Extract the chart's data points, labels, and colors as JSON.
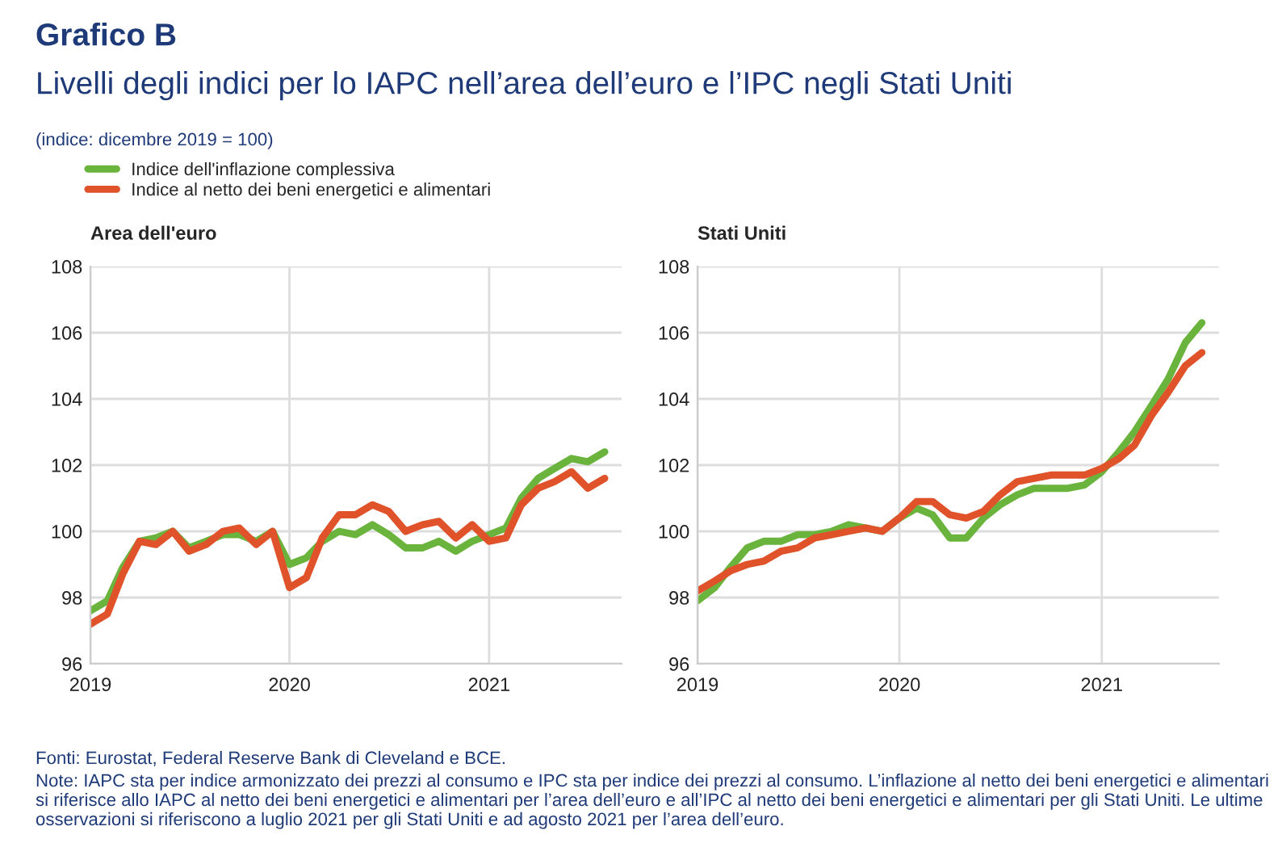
{
  "chart_data": [
    {
      "type": "line",
      "title": "Area dell'euro",
      "annotations": [
        "Grafico B",
        "Livelli degli indici per lo IAPC nell’area dell’euro e l’IPC negli Stati Uniti",
        "(indice: dicembre 2019 = 100)",
        "Fonti: Eurostat, Federal Reserve Bank di Cleveland e BCE.",
        "Note: IAPC sta per indice armonizzato dei prezzi al consumo e IPC sta per indice dei prezzi al consumo. L’inflazione al netto dei beni energetici e alimentari si riferisce allo IAPC al netto dei beni energetici e alimentari per l’area dell’euro e all’IPC al netto dei beni energetici e alimentari per gli Stati Uniti. Le ultime osservazioni si riferiscono a luglio 2021 per gli Stati Uniti e ad agosto 2021 per l’area dell’euro."
      ],
      "x": [
        "2019-01",
        "2019-02",
        "2019-03",
        "2019-04",
        "2019-05",
        "2019-06",
        "2019-07",
        "2019-08",
        "2019-09",
        "2019-10",
        "2019-11",
        "2019-12",
        "2020-01",
        "2020-02",
        "2020-03",
        "2020-04",
        "2020-05",
        "2020-06",
        "2020-07",
        "2020-08",
        "2020-09",
        "2020-10",
        "2020-11",
        "2020-12",
        "2021-01",
        "2021-02",
        "2021-03",
        "2021-04",
        "2021-05",
        "2021-06",
        "2021-07",
        "2021-08"
      ],
      "series": [
        {
          "name": "Indice dell'inflazione complessiva",
          "color": "#6ab43e",
          "values": [
            97.6,
            97.9,
            98.9,
            99.7,
            99.8,
            100.0,
            99.5,
            99.7,
            99.9,
            99.9,
            99.7,
            100.0,
            99.0,
            99.2,
            99.7,
            100.0,
            99.9,
            100.2,
            99.9,
            99.5,
            99.5,
            99.7,
            99.4,
            99.7,
            99.9,
            100.1,
            101.0,
            101.6,
            101.9,
            102.2,
            102.1,
            102.4
          ]
        },
        {
          "name": "Indice al netto dei beni energetici e alimentari",
          "color": "#e0532a",
          "values": [
            97.2,
            97.5,
            98.7,
            99.7,
            99.6,
            100.0,
            99.4,
            99.6,
            100.0,
            100.1,
            99.6,
            100.0,
            98.3,
            98.6,
            99.8,
            100.5,
            100.5,
            100.8,
            100.6,
            100.0,
            100.2,
            100.3,
            99.8,
            100.2,
            99.7,
            99.8,
            100.8,
            101.3,
            101.5,
            101.8,
            101.3,
            101.6
          ]
        }
      ],
      "xlim": [
        "2019-01",
        "2021-09"
      ],
      "xticks": [
        "2019",
        "2020",
        "2021"
      ],
      "ylim": [
        96,
        108
      ],
      "yticks": [
        96,
        98,
        100,
        102,
        104,
        106,
        108
      ],
      "grid": true,
      "legend": "top left",
      "marker": "none",
      "line_style": "solid"
    },
    {
      "type": "line",
      "title": "Stati Uniti",
      "x": [
        "2019-01",
        "2019-02",
        "2019-03",
        "2019-04",
        "2019-05",
        "2019-06",
        "2019-07",
        "2019-08",
        "2019-09",
        "2019-10",
        "2019-11",
        "2019-12",
        "2020-01",
        "2020-02",
        "2020-03",
        "2020-04",
        "2020-05",
        "2020-06",
        "2020-07",
        "2020-08",
        "2020-09",
        "2020-10",
        "2020-11",
        "2020-12",
        "2021-01",
        "2021-02",
        "2021-03",
        "2021-04",
        "2021-05",
        "2021-06",
        "2021-07"
      ],
      "series": [
        {
          "color": "#6ab43e",
          "values": [
            97.9,
            98.3,
            98.9,
            99.5,
            99.7,
            99.7,
            99.9,
            99.9,
            100.0,
            100.2,
            100.1,
            100.0,
            100.4,
            100.7,
            100.5,
            99.8,
            99.8,
            100.4,
            100.8,
            101.1,
            101.3,
            101.3,
            101.3,
            101.4,
            101.8,
            102.4,
            103.0,
            103.8,
            104.6,
            105.7,
            106.3
          ]
        },
        {
          "color": "#e0532a",
          "values": [
            98.2,
            98.5,
            98.8,
            99.0,
            99.1,
            99.4,
            99.5,
            99.8,
            99.9,
            100.0,
            100.1,
            100.0,
            100.4,
            100.9,
            100.9,
            100.5,
            100.4,
            100.6,
            101.1,
            101.5,
            101.6,
            101.7,
            101.7,
            101.7,
            101.9,
            102.2,
            102.6,
            103.5,
            104.2,
            105.0,
            105.4
          ]
        }
      ],
      "xlim": [
        "2019-01",
        "2021-08"
      ],
      "xticks": [
        "2019",
        "2020",
        "2021"
      ],
      "ylim": [
        96,
        108
      ],
      "yticks": [
        96,
        98,
        100,
        102,
        104,
        106,
        108
      ],
      "grid": true,
      "legend": false,
      "marker": "none",
      "line_style": "solid"
    }
  ]
}
